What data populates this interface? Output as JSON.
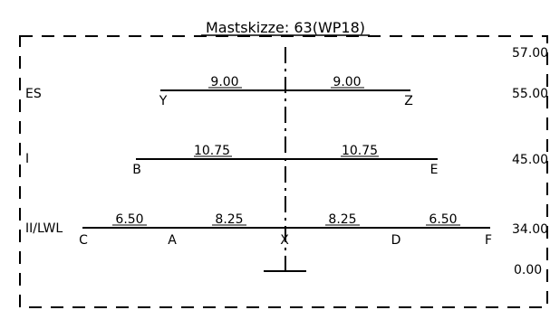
{
  "title": "Mastskizze: 63(WP18)",
  "levels": [
    {
      "label": "ES",
      "height": "55.00"
    },
    {
      "label": "I",
      "height": "45.00"
    },
    {
      "label": "II/LWL",
      "height": "34.00"
    }
  ],
  "top_height": "57.00",
  "base_height": "0.00",
  "arms": {
    "es": {
      "left_length": "9.00",
      "right_length": "9.00",
      "left_point": "Y",
      "right_point": "Z"
    },
    "i": {
      "left_length": "10.75",
      "right_length": "10.75",
      "left_point": "B",
      "right_point": "E"
    },
    "ii": {
      "segments": [
        "6.50",
        "8.25",
        "8.25",
        "6.50"
      ],
      "points": [
        "C",
        "A",
        "X",
        "D",
        "F"
      ]
    }
  }
}
